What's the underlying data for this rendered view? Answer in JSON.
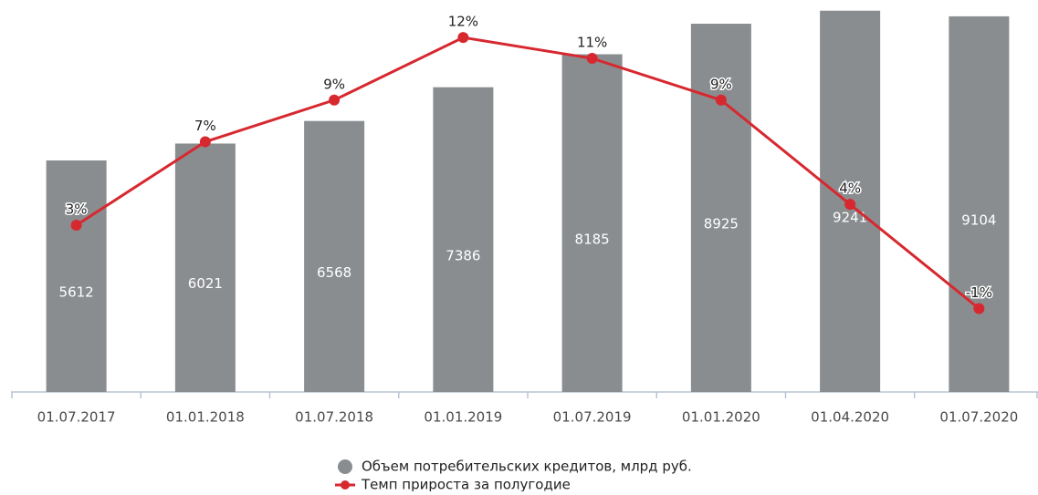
{
  "chart_data": {
    "type": "bar_line",
    "categories": [
      "01.07.2017",
      "01.01.2018",
      "01.07.2018",
      "01.01.2019",
      "01.07.2019",
      "01.01.2020",
      "01.04.2020",
      "01.07.2020"
    ],
    "series": [
      {
        "name": "Объем потребительских кредитов, млрд руб.",
        "type": "bar",
        "color": "#8a8d90",
        "values": [
          5612,
          6021,
          6568,
          7386,
          8185,
          8925,
          9241,
          9104
        ]
      },
      {
        "name": "Темп прироста за полугодие",
        "type": "line",
        "axis": "y2",
        "color": "#d7282f",
        "values": [
          3,
          7,
          9,
          12,
          11,
          9,
          4,
          -1
        ],
        "value_labels": [
          "3%",
          "7%",
          "9%",
          "12%",
          "11%",
          "9%",
          "4%",
          "-1%"
        ]
      }
    ],
    "ylim": [
      0,
      9500
    ],
    "y2lim": [
      -5,
      13.8
    ],
    "legend": "bottom"
  }
}
